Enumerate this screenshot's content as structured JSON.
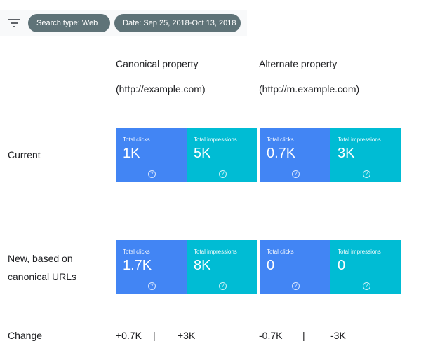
{
  "filters": {
    "chips": [
      {
        "label": "Search type: Web"
      },
      {
        "label": "Date: Sep 25, 2018-Oct 13, 2018"
      }
    ]
  },
  "headers": {
    "canonical": {
      "title": "Canonical property",
      "url": "(http://example.com)"
    },
    "alternate": {
      "title": "Alternate property",
      "url": "(http://m.example.com)"
    }
  },
  "rows": {
    "current": {
      "label": "Current",
      "canonical": {
        "clicks_label": "Total clicks",
        "clicks": "1K",
        "impressions_label": "Total impressions",
        "impressions": "5K"
      },
      "alternate": {
        "clicks_label": "Total clicks",
        "clicks": "0.7K",
        "impressions_label": "Total impressions",
        "impressions": "3K"
      }
    },
    "new": {
      "label_line1": "New, based on",
      "label_line2": "canonical URLs",
      "canonical": {
        "clicks_label": "Total clicks",
        "clicks": "1.7K",
        "impressions_label": "Total impressions",
        "impressions": "8K"
      },
      "alternate": {
        "clicks_label": "Total clicks",
        "clicks": "0",
        "impressions_label": "Total impressions",
        "impressions": "0"
      }
    },
    "change": {
      "label": "Change",
      "canonical": {
        "clicks": "+0.7K",
        "sep": "|",
        "impressions": "+3K"
      },
      "alternate": {
        "clicks": "-0.7K",
        "sep": "|",
        "impressions": "-3K"
      }
    }
  },
  "help_glyph": "?",
  "colors": {
    "clicks": "#4285f4",
    "impressions": "#00bcd4",
    "chip": "#5f7378"
  }
}
